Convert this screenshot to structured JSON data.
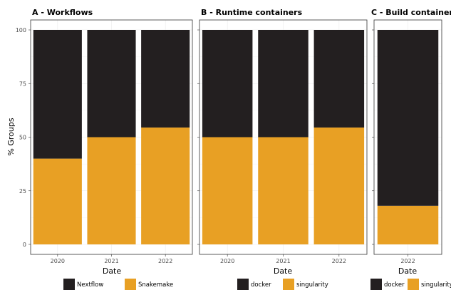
{
  "chart_data": [
    {
      "type": "bar",
      "stacked": true,
      "title": "A - Workflows",
      "xlabel": "Date",
      "ylabel": "% Groups",
      "ylim": [
        0,
        100
      ],
      "yticks": [
        "0",
        "25",
        "50",
        "75",
        "100"
      ],
      "categories": [
        "2020",
        "2021",
        "2022"
      ],
      "series": [
        {
          "name": "Nextflow",
          "color": "#231f20",
          "values": [
            60,
            50,
            45.5
          ]
        },
        {
          "name": "Snakemake",
          "color": "#e8a024",
          "values": [
            40,
            50,
            54.5
          ]
        }
      ],
      "legend": "bottom"
    },
    {
      "type": "bar",
      "stacked": true,
      "title": "B - Runtime containers",
      "xlabel": "Date",
      "ylim": [
        0,
        100
      ],
      "categories": [
        "2020",
        "2021",
        "2022"
      ],
      "series": [
        {
          "name": "docker",
          "color": "#231f20",
          "values": [
            50,
            50,
            45.5
          ]
        },
        {
          "name": "singularity",
          "color": "#e8a024",
          "values": [
            50,
            50,
            54.5
          ]
        }
      ],
      "legend": "bottom"
    },
    {
      "type": "bar",
      "stacked": true,
      "title": "C - Build containers",
      "xlabel": "Date",
      "ylim": [
        0,
        100
      ],
      "categories": [
        "2022"
      ],
      "series": [
        {
          "name": "docker",
          "color": "#231f20",
          "values": [
            82
          ]
        },
        {
          "name": "singularity",
          "color": "#e8a024",
          "values": [
            18
          ]
        }
      ],
      "legend": "bottom"
    }
  ]
}
